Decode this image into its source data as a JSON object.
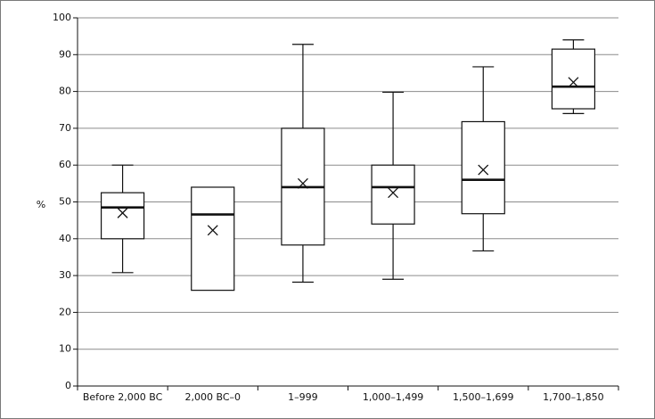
{
  "chart_data": {
    "type": "boxplot",
    "ylabel": "%",
    "ylim": [
      0,
      100
    ],
    "yticks": [
      0,
      10,
      20,
      30,
      40,
      50,
      60,
      70,
      80,
      90,
      100
    ],
    "grid": true,
    "categories": [
      "Before 2,000 BC",
      "2,000 BC–0",
      "1–999",
      "1,000–1,499",
      "1,500–1,699",
      "1,700–1,850"
    ],
    "boxes": [
      {
        "category": "Before 2,000 BC",
        "min": 30.8,
        "q1": 40,
        "median": 48.5,
        "q3": 52.5,
        "max": 60,
        "mean": 47
      },
      {
        "category": "2,000 BC–0",
        "min": 26,
        "q1": 26,
        "median": 46.6,
        "q3": 54,
        "max": 54,
        "mean": 42.3
      },
      {
        "category": "1–999",
        "min": 28.2,
        "q1": 38.3,
        "median": 54,
        "q3": 70,
        "max": 92.8,
        "mean": 55
      },
      {
        "category": "1,000–1,499",
        "min": 29,
        "q1": 44,
        "median": 54,
        "q3": 60,
        "max": 79.8,
        "mean": 52.5
      },
      {
        "category": "1,500–1,699",
        "min": 36.7,
        "q1": 46.8,
        "median": 56,
        "q3": 71.8,
        "max": 86.7,
        "mean": 58.7
      },
      {
        "category": "1,700–1,850",
        "min": 74,
        "q1": 75.3,
        "median": 81.3,
        "q3": 91.5,
        "max": 94,
        "mean": 82.5
      }
    ],
    "colors": {
      "box_stroke": "#111111",
      "box_fill": "#ffffff",
      "grid": "#8c8c8c",
      "axis": "#111111",
      "frame": "#7a7a7a"
    }
  }
}
